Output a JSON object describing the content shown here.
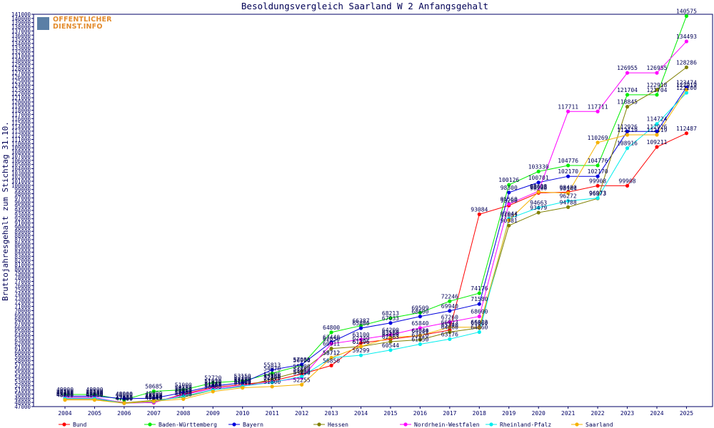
{
  "logo": {
    "line1": "OFFENTLICHER",
    "line2": "DIENST.INFO"
  },
  "chart_data": {
    "type": "line",
    "title": "Besoldungsvergleich Saarland W 2 Anfangsgehalt",
    "ylabel": "Bruttojahresgehalt zum Stichtag 31.10.",
    "xlabel": "",
    "categories": [
      "2004",
      "2005",
      "2006",
      "2007",
      "2008",
      "2009",
      "2010",
      "2011",
      "2012",
      "2013",
      "2014",
      "2015",
      "2016",
      "2017",
      "2018",
      "2019",
      "2020",
      "2021",
      "2022",
      "2023",
      "2024",
      "2025"
    ],
    "ylim": [
      47000,
      141000
    ],
    "ytick_step": 1000,
    "grid": false,
    "legend_position": "bottom",
    "series": [
      {
        "name": "Bund",
        "color": "#ff0000",
        "values": [
          49000,
          49000,
          47940,
          47940,
          50020,
          51620,
          52280,
          53160,
          54800,
          56850,
          62240,
          63160,
          64040,
          65340,
          93084,
          95200,
          98200,
          98400,
          99908,
          99908,
          109211,
          112487
        ]
      },
      {
        "name": "Baden-Württemberg",
        "color": "#00ee00",
        "values": [
          49900,
          49900,
          48600,
          50685,
          51000,
          52720,
          53150,
          54970,
          56900,
          64800,
          66387,
          68213,
          69509,
          72246,
          74176,
          100126,
          103330,
          104776,
          104776,
          121704,
          121704,
          140575
        ]
      },
      {
        "name": "Bayern",
        "color": "#0000dd",
        "values": [
          49500,
          49500,
          48900,
          49000,
          50380,
          51920,
          52700,
          55813,
          57085,
          62440,
          65800,
          67033,
          68600,
          69940,
          71580,
          98300,
          100701,
          102170,
          102170,
          112926,
          112926,
          123474
        ]
      },
      {
        "name": "Hessen",
        "color": "#808000",
        "values": [
          48700,
          48700,
          47900,
          48500,
          49250,
          51000,
          51800,
          53600,
          55500,
          60911,
          61396,
          62563,
          63020,
          64860,
          65860,
          90381,
          93479,
          94788,
          96873,
          118845,
          122918,
          128286
        ]
      },
      {
        "name": "Nordrhein-Westfalen",
        "color": "#ff00ff",
        "values": [
          49200,
          49200,
          47800,
          48000,
          49860,
          51280,
          52000,
          52900,
          53900,
          62050,
          63100,
          64200,
          65840,
          67260,
          68600,
          95560,
          98608,
          117711,
          117711,
          126955,
          126955,
          134493
        ]
      },
      {
        "name": "Rheinland-Pfalz",
        "color": "#00eeee",
        "values": [
          49000,
          49000,
          47800,
          48200,
          49500,
          51000,
          51900,
          52800,
          54200,
          58712,
          59299,
          60544,
          61950,
          63176,
          64860,
          92044,
          94663,
          96272,
          96973,
          108916,
          114724,
          122200
        ]
      },
      {
        "name": "Saarland",
        "color": "#f5b200",
        "values": [
          48600,
          48600,
          47800,
          48300,
          48800,
          50600,
          51500,
          51800,
          52255,
          58712,
          61396,
          63560,
          64034,
          66023,
          66023,
          91681,
          98428,
          98144,
          110269,
          112119,
          112119,
          122919
        ]
      }
    ],
    "data_labels_visible": [
      "140575",
      "134493",
      "128286",
      "126955",
      "126955",
      "121704",
      "121704",
      "123479",
      "123474",
      "117711",
      "117711",
      "118845",
      "122918",
      "114724",
      "112926",
      "112926",
      "112119",
      "112119",
      "110269",
      "108916",
      "112487",
      "109211",
      "104776",
      "104776",
      "102170",
      "102170",
      "103330",
      "100701",
      "100126",
      "99908",
      "99908",
      "98300",
      "98428",
      "98144",
      "98444",
      "96272",
      "96873",
      "97641",
      "95560",
      "94663",
      "93479",
      "94788",
      "93084",
      "92044",
      "91681",
      "90381",
      "74176",
      "71580",
      "70839",
      "72246",
      "69940",
      "68963",
      "69509",
      "68571",
      "67687",
      "66023",
      "66023",
      "65355",
      "64860",
      "64034",
      "63176",
      "62563",
      "61957",
      "68213",
      "67033",
      "66387",
      "65800",
      "64800",
      "63940",
      "62440",
      "62050",
      "61396",
      "60544",
      "59299",
      "58712",
      "56850",
      "60911",
      "57085",
      "56210",
      "55813",
      "54970",
      "53554",
      "53257",
      "52255",
      "52250",
      "51903",
      "50685",
      "50620",
      "49903",
      "49296",
      "49296"
    ]
  }
}
